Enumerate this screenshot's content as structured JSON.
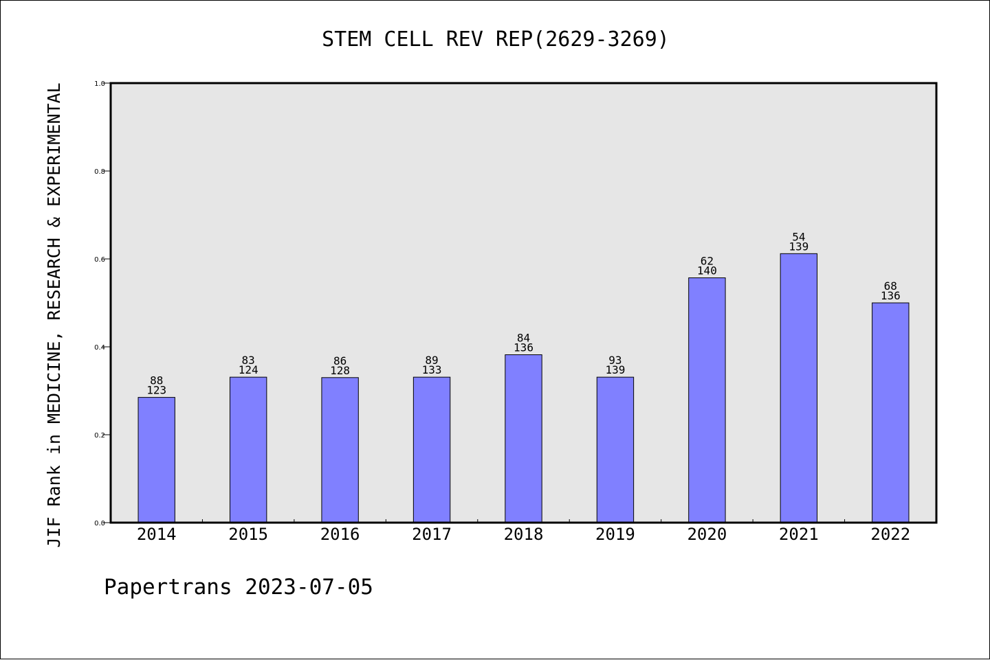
{
  "chart_data": {
    "type": "bar",
    "title": "STEM CELL REV REP(2629-3269)",
    "xlabel": "",
    "ylabel": "JIF Rank in MEDICINE, RESEARCH & EXPERIMENTAL",
    "categories": [
      "2014",
      "2015",
      "2016",
      "2017",
      "2018",
      "2019",
      "2020",
      "2021",
      "2022"
    ],
    "values": [
      0.285,
      0.331,
      0.33,
      0.331,
      0.382,
      0.331,
      0.557,
      0.612,
      0.5
    ],
    "bar_labels": [
      [
        "88",
        "123"
      ],
      [
        "83",
        "124"
      ],
      [
        "86",
        "128"
      ],
      [
        "89",
        "133"
      ],
      [
        "84",
        "136"
      ],
      [
        "93",
        "139"
      ],
      [
        "62",
        "140"
      ],
      [
        "54",
        "139"
      ],
      [
        "68",
        "136"
      ]
    ],
    "ylim": [
      0,
      1
    ],
    "yticks": [
      "0.0",
      "0.2",
      "0.4",
      "0.6",
      "0.8",
      "1.0"
    ],
    "grid": false,
    "legend": "none",
    "bar_color": "#8080ff",
    "plot_background": "#e6e6e6"
  },
  "footer": {
    "text": "Papertrans 2023-07-05"
  }
}
